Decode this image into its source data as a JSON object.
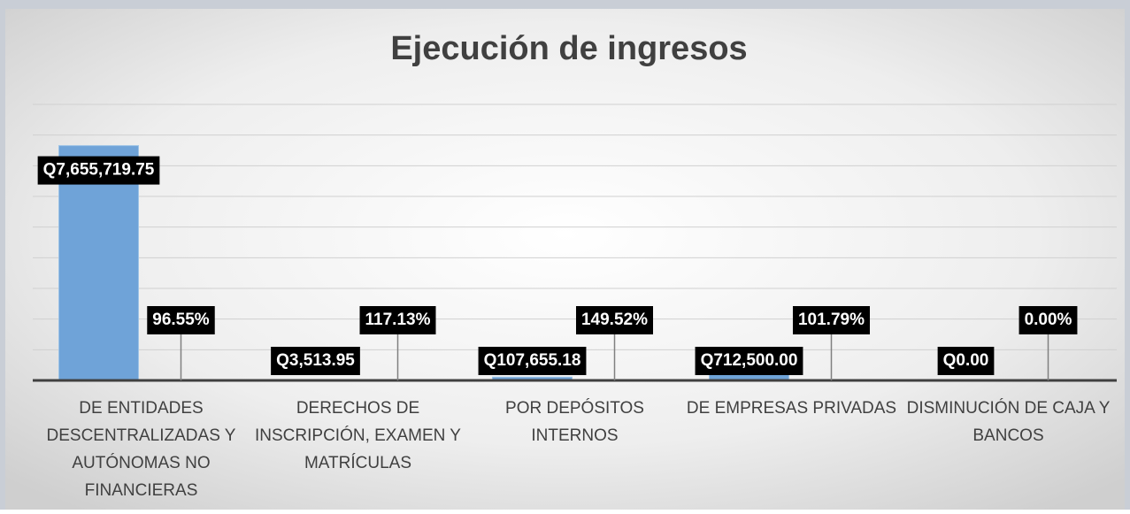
{
  "chart_data": {
    "type": "bar",
    "title": "Ejecución de ingresos",
    "categories": [
      "DE ENTIDADES DESCENTRALIZADAS Y AUTÓNOMAS NO FINANCIERAS",
      "DERECHOS DE INSCRIPCIÓN, EXAMEN Y MATRÍCULAS",
      "POR DEPÓSITOS INTERNOS",
      "DE EMPRESAS PRIVADAS",
      "DISMINUCIÓN DE CAJA Y BANCOS"
    ],
    "series": [
      {
        "color": "#6fa3d8",
        "values": [
          7655719.75,
          3513.95,
          107655.18,
          712500.0,
          0
        ],
        "value_labels": [
          "Q7,655,719.75",
          "Q3,513.95",
          "Q107,655.18",
          "Q712,500.00",
          "Q0.00"
        ]
      },
      {
        "color": "#e07b39",
        "values": [
          96.55,
          117.13,
          149.52,
          101.79,
          0
        ],
        "value_labels": [
          "96.55%",
          "117.13%",
          "149.52%",
          "101.79%",
          "0.00%"
        ]
      }
    ],
    "ylim": [
      0,
      9000000
    ],
    "yticks": [
      0,
      1000000,
      2000000,
      3000000,
      4000000,
      5000000,
      6000000,
      7000000,
      8000000,
      9000000
    ],
    "grid": true
  }
}
